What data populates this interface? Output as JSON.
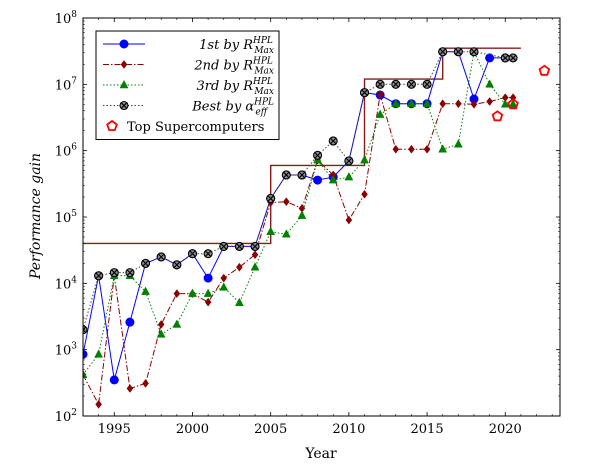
{
  "chart_data": {
    "type": "line",
    "xlabel": "Year",
    "ylabel": "Performance gain",
    "xlim": [
      1993,
      2023.5
    ],
    "ylim_log10": [
      2,
      8
    ],
    "y_scale": "log",
    "x_ticks": [
      1995,
      2000,
      2005,
      2010,
      2015,
      2020
    ],
    "y_ticks": [
      {
        "exp": 2,
        "base": "10",
        "sup": "2"
      },
      {
        "exp": 3,
        "base": "10",
        "sup": "3"
      },
      {
        "exp": 4,
        "base": "10",
        "sup": "4"
      },
      {
        "exp": 5,
        "base": "10",
        "sup": "5"
      },
      {
        "exp": 6,
        "base": "10",
        "sup": "6"
      },
      {
        "exp": 7,
        "base": "10",
        "sup": "7"
      },
      {
        "exp": 8,
        "base": "10",
        "sup": "8"
      }
    ],
    "legend_position": "top-left",
    "envelope": {
      "color": "#8b1a1a",
      "x": [
        1993,
        2005,
        2005,
        2010,
        2010,
        2011,
        2011,
        2016,
        2016,
        2021
      ],
      "y": [
        40000,
        40000,
        600000,
        600000,
        600000,
        600000,
        12000000,
        12000000,
        35000000,
        35000000
      ]
    },
    "series": [
      {
        "name_prefix": "1st by R",
        "sup": "HPL",
        "sub": "Max",
        "color": "#0000ff",
        "line": "solid",
        "marker": "circle",
        "x": [
          1993,
          1994,
          1995,
          1996,
          1997,
          1998,
          1999,
          2000,
          2001,
          2002,
          2003,
          2004,
          2005,
          2006,
          2007,
          2008,
          2009,
          2010,
          2011,
          2012,
          2013,
          2014,
          2015,
          2016,
          2017,
          2018,
          2019,
          2020
        ],
        "y": [
          850,
          13000,
          350,
          2600,
          20000,
          25000,
          19000,
          28000,
          12000,
          36000,
          36000,
          36000,
          190000,
          430000,
          430000,
          360000,
          400000,
          700000,
          7500000,
          6900000,
          5100000,
          5100000,
          5100000,
          31000000,
          31000000,
          6000000,
          25000000,
          25000000
        ]
      },
      {
        "name_prefix": "2nd by R",
        "sup": "HPL",
        "sub": "Max",
        "color": "#8b0000",
        "line": "dashdot",
        "marker": "diamond",
        "x": [
          1993,
          1994,
          1995,
          1996,
          1997,
          1998,
          1999,
          2000,
          2001,
          2002,
          2003,
          2004,
          2005,
          2006,
          2007,
          2008,
          2009,
          2010,
          2011,
          2012,
          2013,
          2014,
          2015,
          2016,
          2017,
          2018,
          2019,
          2020,
          2020.5
        ],
        "y": [
          420,
          150,
          13000,
          260,
          310,
          2400,
          7000,
          7000,
          5200,
          12000,
          17500,
          27000,
          165000,
          170000,
          135000,
          720000,
          430000,
          90000,
          220000,
          7000000,
          1050000,
          1050000,
          1050000,
          5100000,
          5100000,
          5000000,
          5500000,
          6300000,
          6300000
        ]
      },
      {
        "name_prefix": "3rd by R",
        "sup": "HPL",
        "sub": "Max",
        "color": "#008000",
        "line": "dotted",
        "marker": "triangle",
        "x": [
          1993,
          1994,
          1995,
          1996,
          1997,
          1998,
          1999,
          2000,
          2001,
          2002,
          2003,
          2004,
          2005,
          2006,
          2007,
          2008,
          2009,
          2010,
          2011,
          2012,
          2013,
          2014,
          2015,
          2016,
          2017,
          2018,
          2019,
          2020,
          2020.5
        ],
        "y": [
          420,
          850,
          13000,
          13000,
          7500,
          1700,
          2400,
          7000,
          7000,
          8700,
          5100,
          17500,
          60000,
          55000,
          105000,
          720000,
          360000,
          400000,
          720000,
          3500000,
          5100000,
          5100000,
          5100000,
          1050000,
          1250000,
          31000000,
          10000000,
          5000000,
          5000000
        ]
      },
      {
        "name_prefix": "Best by α",
        "sup": "HPL",
        "sub": "eff",
        "color": "#404040",
        "line": "dotted",
        "marker": "otimes",
        "x": [
          1993,
          1994,
          1995,
          1996,
          1997,
          1998,
          1999,
          2000,
          2001,
          2002,
          2003,
          2004,
          2005,
          2006,
          2007,
          2008,
          2009,
          2010,
          2011,
          2012,
          2013,
          2014,
          2015,
          2016,
          2017,
          2018,
          2020,
          2020.5
        ],
        "y": [
          2000,
          13000,
          14500,
          14500,
          20000,
          25000,
          19000,
          28000,
          28000,
          36000,
          36000,
          36000,
          190000,
          430000,
          430000,
          850000,
          1400000,
          700000,
          7500000,
          10000000,
          10000000,
          10000000,
          10000000,
          31000000,
          31000000,
          31000000,
          25000000,
          25000000
        ]
      },
      {
        "name": "Top Supercomputers",
        "color": "#ff0000",
        "line": "none",
        "marker": "pentagon",
        "x": [
          2019.5,
          2020.5,
          2022.5
        ],
        "y": [
          3300000,
          5000000,
          16000000
        ]
      }
    ]
  }
}
